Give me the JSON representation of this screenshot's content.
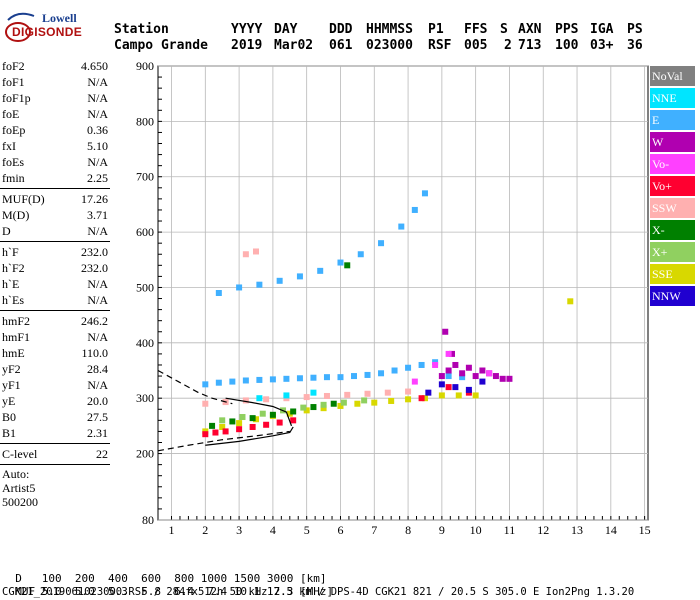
{
  "logo": {
    "line1": "Lowell",
    "line2": "DIGISONDE"
  },
  "header": {
    "labels": [
      "Station",
      "YYYY",
      "DAY",
      "DDD",
      "HHMMSS",
      "P1",
      "FFS",
      "S",
      "AXN",
      "PPS",
      "IGA",
      "PS"
    ],
    "values": [
      "Campo Grande",
      "2019",
      "Mar02",
      "061",
      "023000",
      "RSF",
      "005",
      "2",
      "713",
      "100",
      "03+",
      "36"
    ]
  },
  "params": {
    "group1": [
      {
        "label": "foF2",
        "value": "4.650"
      },
      {
        "label": "foF1",
        "value": "N/A"
      },
      {
        "label": "foF1p",
        "value": "N/A"
      },
      {
        "label": "foE",
        "value": "N/A"
      },
      {
        "label": "foEp",
        "value": "0.36"
      },
      {
        "label": "fxI",
        "value": "5.10"
      },
      {
        "label": "foEs",
        "value": "N/A"
      },
      {
        "label": "fmin",
        "value": "2.25"
      }
    ],
    "group2": [
      {
        "label": "MUF(D)",
        "value": "17.26"
      },
      {
        "label": "M(D)",
        "value": "3.71"
      },
      {
        "label": "D",
        "value": "N/A"
      }
    ],
    "group3": [
      {
        "label": "h`F",
        "value": "232.0"
      },
      {
        "label": "h`F2",
        "value": "232.0"
      },
      {
        "label": "h`E",
        "value": "N/A"
      },
      {
        "label": "h`Es",
        "value": "N/A"
      }
    ],
    "group4": [
      {
        "label": "hmF2",
        "value": "246.2"
      },
      {
        "label": "hmF1",
        "value": "N/A"
      },
      {
        "label": "hmE",
        "value": "110.0"
      },
      {
        "label": "yF2",
        "value": "28.4"
      },
      {
        "label": "yF1",
        "value": "N/A"
      },
      {
        "label": "yE",
        "value": "20.0"
      },
      {
        "label": "B0",
        "value": "27.5"
      },
      {
        "label": "B1",
        "value": "2.31"
      }
    ],
    "group5": [
      {
        "label": "C-level",
        "value": "22"
      }
    ],
    "auto": [
      "Auto:",
      "Artist5",
      "500200"
    ]
  },
  "legend": [
    {
      "label": "NoVal",
      "color": "#808080"
    },
    {
      "label": "NNE",
      "color": "#00e5ff"
    },
    {
      "label": "E",
      "color": "#40b0ff"
    },
    {
      "label": "W",
      "color": "#b000b0"
    },
    {
      "label": "Vo-",
      "color": "#ff40ff"
    },
    {
      "label": "Vo+",
      "color": "#ff0030"
    },
    {
      "label": "SSW",
      "color": "#ffb0b0"
    },
    {
      "label": "X-",
      "color": "#008000"
    },
    {
      "label": "X+",
      "color": "#90d060"
    },
    {
      "label": "SSE",
      "color": "#d8d800"
    },
    {
      "label": "NNW",
      "color": "#2000d0"
    }
  ],
  "bottom": {
    "d_label": "D",
    "d_values": "100  200  400  600  800 1000 1500 3000 [km]",
    "muf_label": "MUF",
    "muf_values": "5.0  5.0  5.3  5.8  6.4  7.4 10.1 17.3 [MHz]",
    "footer": "CGK21_2019061023000.RSF / 284fx512h 50 kHz 2.5 km / DPS-4D CGK21 821 / 20.5 S 305.0 E Ion2Png 1.3.20"
  },
  "chart_data": {
    "type": "scatter",
    "title": "",
    "xlabel": "",
    "ylabel": "",
    "xlim": [
      0.6,
      15.1
    ],
    "ylim": [
      80,
      900
    ],
    "xticks": [
      1,
      2,
      3,
      4,
      5,
      6,
      7,
      8,
      9,
      10,
      11,
      12,
      13,
      14,
      15
    ],
    "yticks": [
      80,
      200,
      300,
      400,
      500,
      600,
      700,
      800,
      900
    ],
    "grid": true,
    "series": [
      {
        "name": "E",
        "color": "#40b0ff",
        "x": [
          2.0,
          2.4,
          2.8,
          3.2,
          3.6,
          4.0,
          4.4,
          4.8,
          5.2,
          5.6,
          6.0,
          6.4,
          6.8,
          7.2,
          7.6,
          8.0,
          8.4,
          8.8,
          9.2,
          9.6,
          2.4,
          3.0,
          3.6,
          4.2,
          4.8,
          5.4,
          6.0,
          6.6,
          7.2,
          7.8,
          8.2,
          8.5
        ],
        "y": [
          325,
          328,
          330,
          332,
          333,
          334,
          335,
          336,
          337,
          338,
          338,
          340,
          342,
          345,
          350,
          355,
          360,
          365,
          340,
          338,
          490,
          500,
          505,
          512,
          520,
          530,
          545,
          560,
          580,
          610,
          640,
          670
        ]
      },
      {
        "name": "W",
        "color": "#b000b0",
        "x": [
          9.0,
          9.2,
          9.4,
          9.6,
          9.8,
          10.0,
          10.2,
          10.4,
          10.6,
          10.8,
          11.0,
          9.1,
          9.3
        ],
        "y": [
          340,
          350,
          360,
          345,
          355,
          340,
          350,
          345,
          340,
          335,
          335,
          420,
          380
        ]
      },
      {
        "name": "SSE",
        "color": "#d8d800",
        "x": [
          2.0,
          2.5,
          3.0,
          3.5,
          4.0,
          4.5,
          5.0,
          5.5,
          6.0,
          6.5,
          7.0,
          7.5,
          8.0,
          8.5,
          9.0,
          9.5,
          10.0,
          12.8
        ],
        "y": [
          240,
          248,
          255,
          262,
          268,
          272,
          278,
          282,
          286,
          290,
          292,
          295,
          298,
          300,
          305,
          305,
          305,
          475
        ]
      },
      {
        "name": "SSW",
        "color": "#ffb0b0",
        "x": [
          2.0,
          2.6,
          3.2,
          3.8,
          4.4,
          5.0,
          5.6,
          6.2,
          6.8,
          7.4,
          8.0,
          3.2,
          3.5
        ],
        "y": [
          290,
          293,
          296,
          298,
          300,
          302,
          304,
          306,
          308,
          310,
          312,
          560,
          565
        ]
      },
      {
        "name": "Vo+",
        "color": "#ff0030",
        "x": [
          2.0,
          2.3,
          2.6,
          3.0,
          3.4,
          3.8,
          4.2,
          4.6,
          8.4,
          9.2,
          9.8
        ],
        "y": [
          235,
          238,
          240,
          244,
          248,
          252,
          256,
          260,
          300,
          320,
          310
        ]
      },
      {
        "name": "X-",
        "color": "#008000",
        "x": [
          2.2,
          2.8,
          3.4,
          4.0,
          4.6,
          5.2,
          5.8,
          6.2
        ],
        "y": [
          250,
          258,
          264,
          270,
          276,
          284,
          290,
          540
        ]
      },
      {
        "name": "X+",
        "color": "#90d060",
        "x": [
          2.5,
          3.1,
          3.7,
          4.3,
          4.9,
          5.5,
          6.1,
          6.7
        ],
        "y": [
          260,
          266,
          272,
          278,
          283,
          288,
          292,
          296
        ]
      },
      {
        "name": "NNW",
        "color": "#2000d0",
        "x": [
          8.6,
          9.0,
          9.4,
          9.8,
          10.2
        ],
        "y": [
          310,
          325,
          320,
          315,
          330
        ]
      },
      {
        "name": "NNE",
        "color": "#00e5ff",
        "x": [
          3.6,
          4.4,
          5.2
        ],
        "y": [
          300,
          305,
          310
        ]
      },
      {
        "name": "Vo-",
        "color": "#ff40ff",
        "x": [
          8.2,
          8.8,
          9.2,
          10.4
        ],
        "y": [
          330,
          360,
          380,
          345
        ]
      }
    ],
    "profile_curves": [
      {
        "style": "dashed",
        "x": [
          0.6,
          1.2,
          1.8,
          2.2,
          2.8
        ],
        "y": [
          350,
          330,
          310,
          300,
          290
        ]
      },
      {
        "style": "dashed",
        "x": [
          0.6,
          1.5,
          2.5,
          3.5,
          4.5
        ],
        "y": [
          205,
          215,
          225,
          232,
          240
        ]
      },
      {
        "style": "solid",
        "x": [
          2.0,
          3.0,
          4.0,
          4.5,
          4.6
        ],
        "y": [
          215,
          222,
          232,
          238,
          248
        ]
      },
      {
        "style": "solid",
        "x": [
          2.6,
          3.4,
          4.0,
          4.4,
          4.55
        ],
        "y": [
          300,
          292,
          285,
          275,
          250
        ]
      }
    ]
  }
}
